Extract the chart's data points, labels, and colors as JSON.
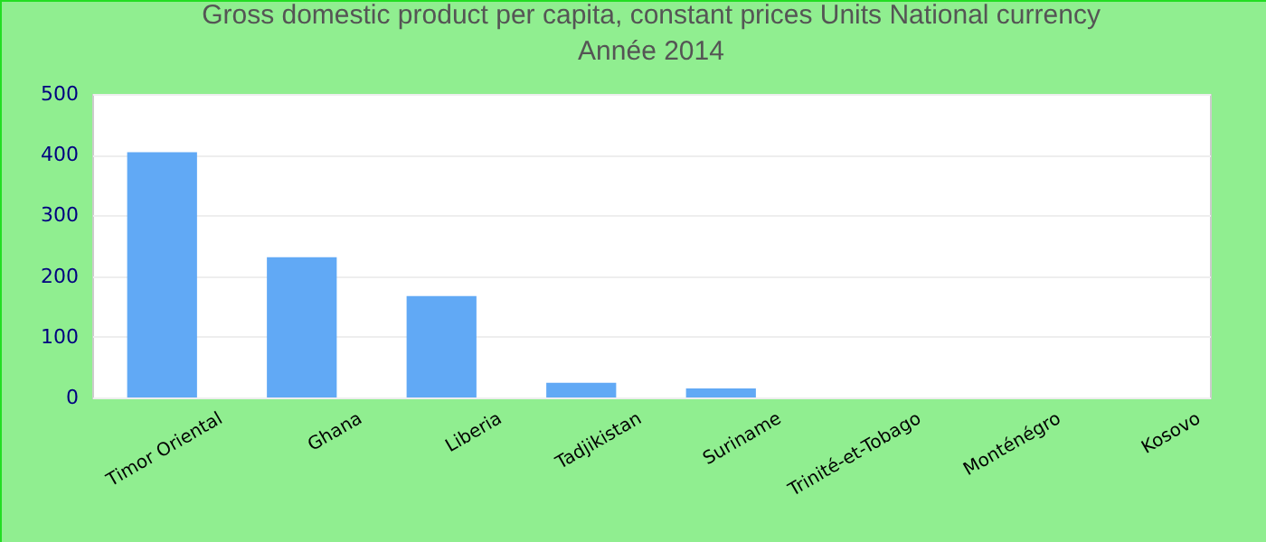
{
  "chart_data": {
    "type": "bar",
    "title": "Gross domestic product per capita, constant prices Units National currency",
    "subtitle": "Année 2014",
    "categories": [
      "Timor Oriental",
      "Ghana",
      "Liberia",
      "Tadjikistan",
      "Suriname",
      "Trinité-et-Tobago",
      "Monténégro",
      "Kosovo"
    ],
    "values": [
      404,
      231,
      167,
      24,
      15,
      0,
      0,
      0
    ],
    "color": "#61a9f5",
    "ylim": [
      0,
      500
    ],
    "yticks": [
      0,
      100,
      200,
      300,
      400,
      500
    ],
    "grid": "y"
  }
}
